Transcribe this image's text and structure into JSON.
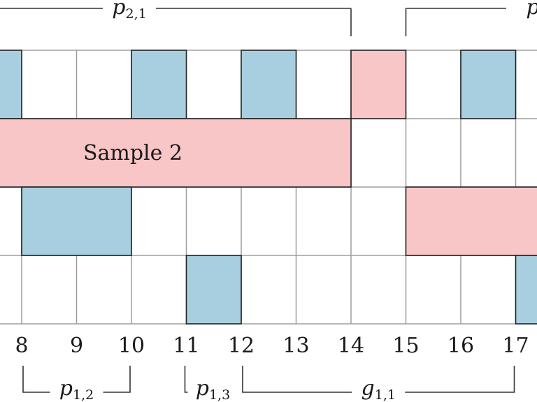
{
  "diagram": {
    "x_ticks": [
      "8",
      "9",
      "10",
      "11",
      "12",
      "13",
      "14",
      "15",
      "16",
      "17"
    ],
    "rows": [
      {
        "blocks": [
          {
            "from": 7,
            "to": 8,
            "color": "blue"
          },
          {
            "from": 10,
            "to": 11,
            "color": "blue"
          },
          {
            "from": 12,
            "to": 13,
            "color": "blue"
          },
          {
            "from": 14,
            "to": 15,
            "color": "pink"
          },
          {
            "from": 16,
            "to": 17,
            "color": "blue"
          }
        ]
      },
      {
        "blocks": [
          {
            "from": 7,
            "to": 14,
            "color": "pink",
            "label": "Sample 2"
          }
        ]
      },
      {
        "blocks": [
          {
            "from": 8,
            "to": 10,
            "color": "blue"
          },
          {
            "from": 15,
            "to": 18,
            "color": "pink"
          }
        ]
      },
      {
        "blocks": [
          {
            "from": 11,
            "to": 12,
            "color": "blue"
          },
          {
            "from": 17,
            "to": 18,
            "color": "blue"
          }
        ]
      }
    ],
    "top_braces": [
      {
        "from": 7,
        "to": 14,
        "base": "p",
        "sub": "2,1"
      },
      {
        "from": 15,
        "to": 18,
        "base": "p",
        "sub": ""
      }
    ],
    "bottom_braces": [
      {
        "from": 8,
        "to": 10,
        "base": "p",
        "sub": "1,2"
      },
      {
        "from": 11,
        "to": 12,
        "base": "p",
        "sub": "1,3"
      },
      {
        "from": 12,
        "to": 17,
        "base": "g",
        "sub": "1,1"
      }
    ],
    "colors": {
      "blue": "#a8cfe0",
      "pink": "#f8c6c7",
      "grid": "#9e9e9e",
      "border": "#222222",
      "bracket": "#333333"
    }
  }
}
